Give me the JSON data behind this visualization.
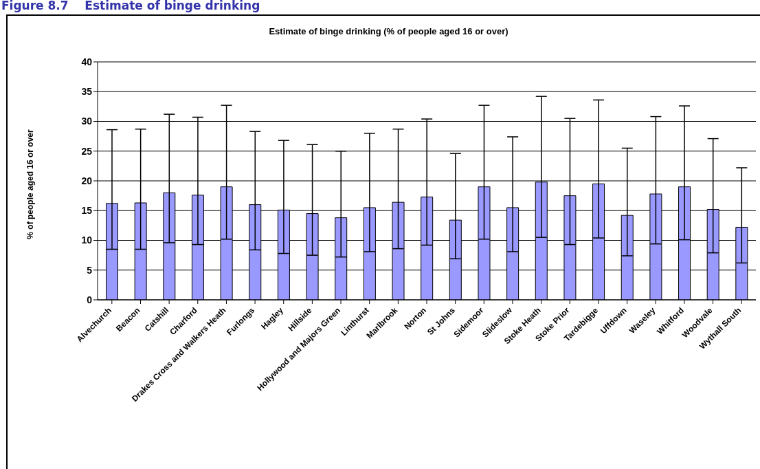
{
  "chart_data": {
    "type": "bar",
    "title": "Estimate of binge drinking (% of people aged 16 or over)",
    "ylabel": "% of people aged 16 or over",
    "annotations": [
      "Figure 8.7    Estimate of binge drinking"
    ],
    "categories": [
      "Alvechurch",
      "Beacon",
      "Catshill",
      "Charford",
      "Drakes Cross and Walkers Heath",
      "Furlongs",
      "Hagley",
      "Hillside",
      "Hollywood and Majors Green",
      "Linthurst",
      "Marlbrook",
      "Norton",
      "St Johns",
      "Sidemoor",
      "Slideslow",
      "Stoke Heath",
      "Stoke Prior",
      "Tardebigge",
      "Uffdown",
      "Waseley",
      "Whitford",
      "Woodvale",
      "Wythall South"
    ],
    "values": [
      16.2,
      16.3,
      18.0,
      17.6,
      19.0,
      16.0,
      15.1,
      14.5,
      13.8,
      15.5,
      16.4,
      17.3,
      13.4,
      19.0,
      15.5,
      19.8,
      17.5,
      19.5,
      14.2,
      17.8,
      19.0,
      15.2,
      12.2
    ],
    "errors": [
      [
        8.5,
        28.6
      ],
      [
        8.5,
        28.7
      ],
      [
        9.6,
        31.2
      ],
      [
        9.3,
        30.7
      ],
      [
        10.2,
        32.7
      ],
      [
        8.4,
        28.3
      ],
      [
        7.8,
        26.8
      ],
      [
        7.5,
        26.1
      ],
      [
        7.2,
        25.0
      ],
      [
        8.1,
        28.0
      ],
      [
        8.6,
        28.7
      ],
      [
        9.2,
        30.4
      ],
      [
        6.9,
        24.6
      ],
      [
        10.2,
        32.7
      ],
      [
        8.1,
        27.4
      ],
      [
        10.5,
        34.2
      ],
      [
        9.3,
        30.5
      ],
      [
        10.4,
        33.6
      ],
      [
        7.4,
        25.5
      ],
      [
        9.4,
        30.8
      ],
      [
        10.1,
        32.6
      ],
      [
        7.9,
        27.1
      ],
      [
        6.2,
        22.2
      ]
    ],
    "color": "#9999ff",
    "ylim": [
      0,
      40
    ],
    "yticks": [
      0,
      5,
      10,
      15,
      20,
      25,
      30,
      35,
      40
    ],
    "grid": "y",
    "legend": false
  }
}
